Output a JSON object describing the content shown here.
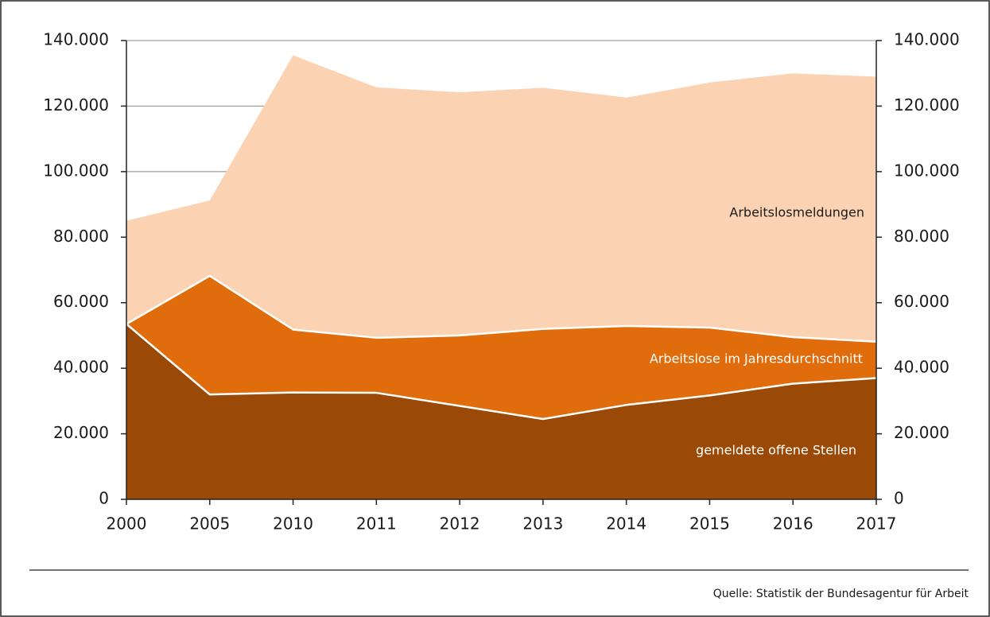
{
  "chart_data": {
    "type": "area",
    "categories": [
      "2000",
      "2005",
      "2010",
      "2011",
      "2012",
      "2013",
      "2014",
      "2015",
      "2016",
      "2017"
    ],
    "series": [
      {
        "name": "Arbeitslosmeldungen",
        "color": "#fbd3b3",
        "values": [
          85000,
          91200,
          135500,
          125700,
          124200,
          125600,
          122600,
          127200,
          130000,
          129000
        ]
      },
      {
        "name": "Arbeitslose im Jahresdurchschnitt",
        "color": "#e06c0c",
        "values": [
          53500,
          68200,
          51800,
          49300,
          50000,
          52000,
          52900,
          52400,
          49500,
          48100
        ]
      },
      {
        "name": "gemeldete offene Stellen",
        "color": "#9a4a06",
        "values": [
          53500,
          32000,
          32600,
          32500,
          28500,
          24500,
          28800,
          31700,
          35300,
          37000
        ]
      }
    ],
    "ylim": [
      0,
      140000
    ],
    "yticks": [
      0,
      {
        "value": 20000,
        "label": "20.000"
      },
      {
        "value": 40000,
        "label": "40.000"
      },
      {
        "value": 60000,
        "label": "60.000"
      },
      {
        "value": 80000,
        "label": "80.000"
      },
      {
        "value": 100000,
        "label": "100.000"
      },
      {
        "value": 120000,
        "label": "120.000"
      },
      {
        "value": 140000,
        "label": "140.000"
      }
    ],
    "y2lim": [
      0,
      140000
    ],
    "y2ticks": [
      0,
      {
        "value": 20000,
        "label": "20.000"
      },
      {
        "value": 40000,
        "label": "40.000"
      },
      {
        "value": 60000,
        "label": "60.000"
      },
      {
        "value": 80000,
        "label": "80.000"
      },
      {
        "value": 100000,
        "label": "100.000"
      },
      {
        "value": 120000,
        "label": "120.000"
      },
      {
        "value": 140000,
        "label": "140.000"
      }
    ],
    "grid": true,
    "source": "Quelle: Statistik der Bundesagentur für Arbeit"
  }
}
